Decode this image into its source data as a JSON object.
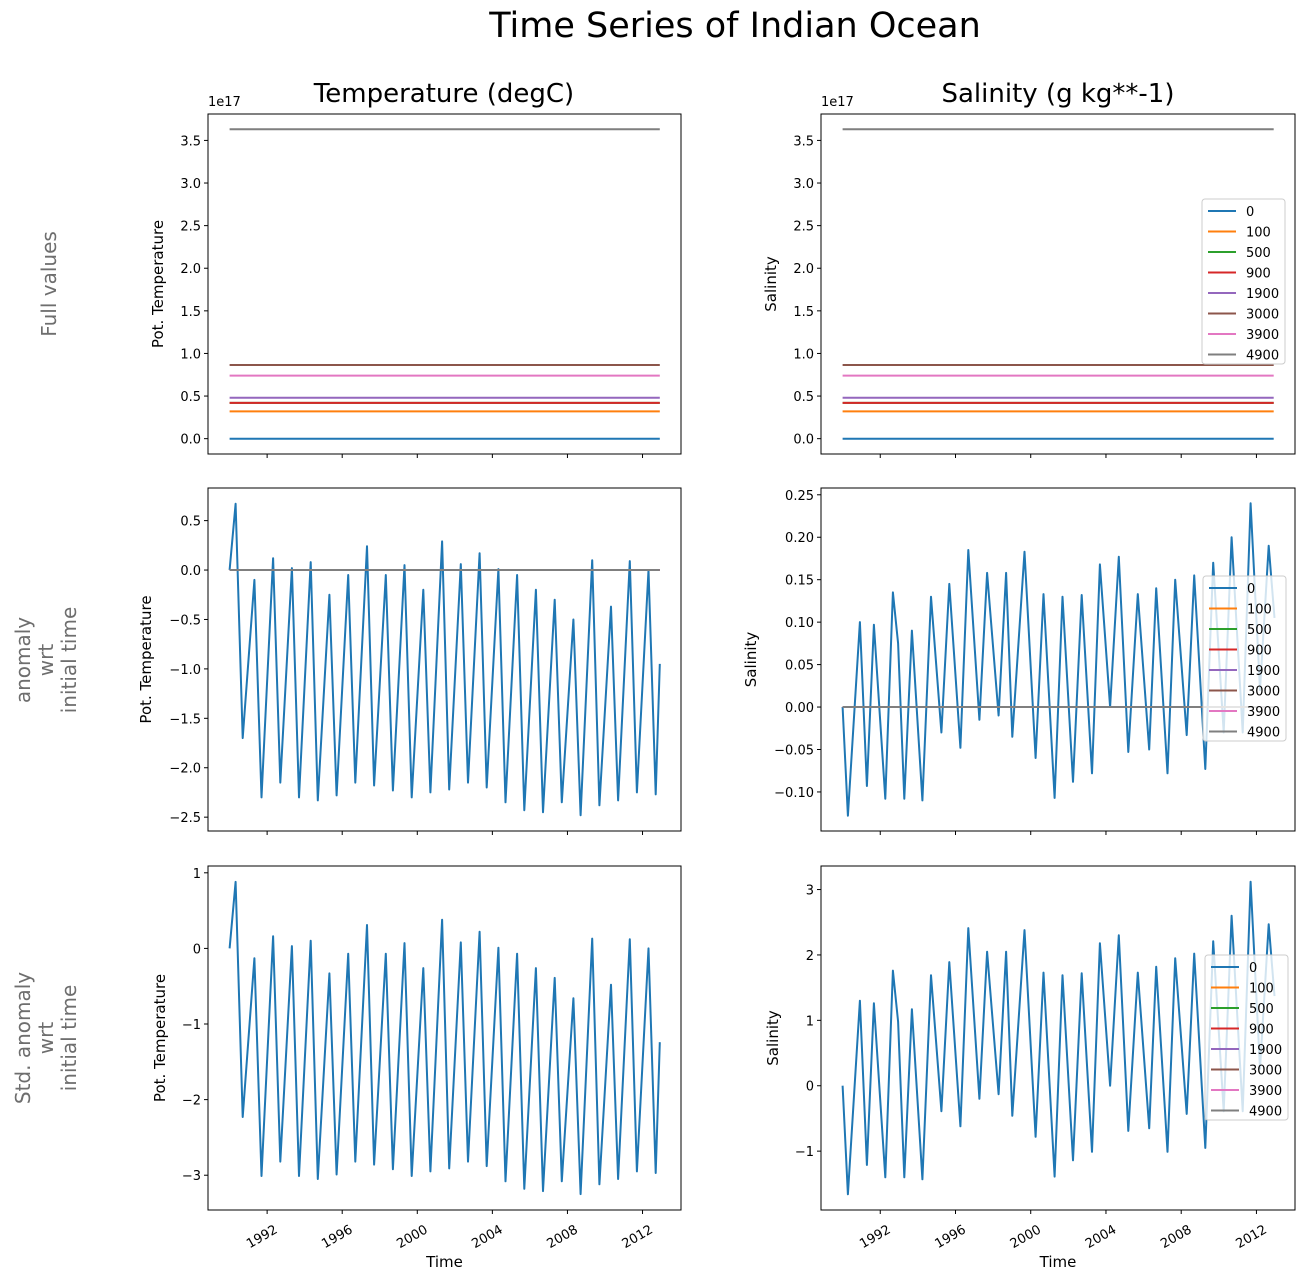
{
  "figure": {
    "title": "Time Series of Indian Ocean",
    "column_titles": [
      "Temperature (degC)",
      "Salinity (g kg**-1)"
    ],
    "row_labels": [
      [
        "Full values"
      ],
      [
        "anomaly",
        "wrt",
        "initial time"
      ],
      [
        "Std. anomaly",
        "wrt",
        "initial time"
      ]
    ],
    "xlabel": "Time",
    "xticks": [
      1992,
      1996,
      2000,
      2004,
      2008,
      2012
    ],
    "xlim": [
      1988.85,
      2014.05
    ],
    "legend_labels": [
      "0",
      "100",
      "500",
      "900",
      "1900",
      "3000",
      "3900",
      "4900"
    ],
    "colors": [
      "#1f77b4",
      "#ff7f0e",
      "#2ca02c",
      "#d62728",
      "#9467bd",
      "#8c564b",
      "#e377c2",
      "#7f7f7f"
    ]
  },
  "chart_data": [
    {
      "type": "line",
      "panel": "temperature-full",
      "ylabel": "Pot. Temperature",
      "offset_text": "1e17",
      "ylim": [
        -0.18,
        3.81
      ],
      "yticks": [
        0.0,
        0.5,
        1.0,
        1.5,
        2.0,
        2.5,
        3.0,
        3.5
      ],
      "ytick_labels": [
        "0.0",
        "0.5",
        "1.0",
        "1.5",
        "2.0",
        "2.5",
        "3.0",
        "3.5"
      ],
      "legend": false,
      "series": [
        {
          "name": "0",
          "x": [
            1990.0,
            2012.92
          ],
          "y": [
            0.0,
            0.0
          ]
        },
        {
          "name": "100",
          "x": [
            1990.0,
            2012.92
          ],
          "y": [
            0.32,
            0.32
          ]
        },
        {
          "name": "500",
          "x": [
            1990.0,
            2012.92
          ],
          "y": [
            0.42,
            0.42
          ]
        },
        {
          "name": "900",
          "x": [
            1990.0,
            2012.92
          ],
          "y": [
            0.42,
            0.42
          ]
        },
        {
          "name": "1900",
          "x": [
            1990.0,
            2012.92
          ],
          "y": [
            0.48,
            0.48
          ]
        },
        {
          "name": "3000",
          "x": [
            1990.0,
            2012.92
          ],
          "y": [
            0.865,
            0.865
          ]
        },
        {
          "name": "3900",
          "x": [
            1990.0,
            2012.92
          ],
          "y": [
            0.74,
            0.74
          ]
        },
        {
          "name": "4900",
          "x": [
            1990.0,
            2012.92
          ],
          "y": [
            3.63,
            3.63
          ]
        }
      ]
    },
    {
      "type": "line",
      "panel": "salinity-full",
      "ylabel": "Salinity",
      "offset_text": "1e17",
      "ylim": [
        -0.18,
        3.81
      ],
      "yticks": [
        0.0,
        0.5,
        1.0,
        1.5,
        2.0,
        2.5,
        3.0,
        3.5
      ],
      "ytick_labels": [
        "0.0",
        "0.5",
        "1.0",
        "1.5",
        "2.0",
        "2.5",
        "3.0",
        "3.5"
      ],
      "legend": true,
      "series": [
        {
          "name": "0",
          "x": [
            1990.0,
            2012.92
          ],
          "y": [
            0.0,
            0.0
          ]
        },
        {
          "name": "100",
          "x": [
            1990.0,
            2012.92
          ],
          "y": [
            0.32,
            0.32
          ]
        },
        {
          "name": "500",
          "x": [
            1990.0,
            2012.92
          ],
          "y": [
            0.42,
            0.42
          ]
        },
        {
          "name": "900",
          "x": [
            1990.0,
            2012.92
          ],
          "y": [
            0.42,
            0.42
          ]
        },
        {
          "name": "1900",
          "x": [
            1990.0,
            2012.92
          ],
          "y": [
            0.48,
            0.48
          ]
        },
        {
          "name": "3000",
          "x": [
            1990.0,
            2012.92
          ],
          "y": [
            0.865,
            0.865
          ]
        },
        {
          "name": "3900",
          "x": [
            1990.0,
            2012.92
          ],
          "y": [
            0.74,
            0.74
          ]
        },
        {
          "name": "4900",
          "x": [
            1990.0,
            2012.92
          ],
          "y": [
            3.63,
            3.63
          ]
        }
      ]
    },
    {
      "type": "line",
      "panel": "temperature-anomaly",
      "ylabel": "Pot. Temperature",
      "offset_text": "",
      "ylim": [
        -2.64,
        0.83
      ],
      "yticks": [
        -2.5,
        -2.0,
        -1.5,
        -1.0,
        -0.5,
        0.0,
        0.5
      ],
      "ytick_labels": [
        "−2.5",
        "−2.0",
        "−1.5",
        "−1.0",
        "−0.5",
        "0.0",
        "0.5"
      ],
      "legend": false,
      "series": [
        {
          "name": "0",
          "x": [
            1990.0,
            1990.32,
            1990.7,
            1991.32,
            1991.7,
            1992.32,
            1992.7,
            1993.32,
            1993.7,
            1994.32,
            1994.7,
            1995.32,
            1995.7,
            1996.32,
            1996.7,
            1997.32,
            1997.7,
            1998.32,
            1998.7,
            1999.32,
            1999.7,
            2000.32,
            2000.7,
            2001.32,
            2001.7,
            2002.32,
            2002.7,
            2003.32,
            2003.7,
            2004.32,
            2004.7,
            2005.32,
            2005.7,
            2006.32,
            2006.7,
            2007.32,
            2007.7,
            2008.32,
            2008.7,
            2009.32,
            2009.7,
            2010.32,
            2010.7,
            2011.32,
            2011.7,
            2012.32,
            2012.7,
            2012.92
          ],
          "y": [
            0,
            0.67,
            -1.7,
            -0.1,
            -2.3,
            0.12,
            -2.15,
            0.02,
            -2.3,
            0.08,
            -2.33,
            -0.25,
            -2.28,
            -0.05,
            -2.15,
            0.24,
            -2.18,
            -0.05,
            -2.23,
            0.05,
            -2.3,
            -0.2,
            -2.25,
            0.29,
            -2.22,
            0.06,
            -2.15,
            0.17,
            -2.2,
            0.01,
            -2.35,
            -0.05,
            -2.43,
            -0.2,
            -2.45,
            -0.3,
            -2.35,
            -0.5,
            -2.48,
            0.1,
            -2.38,
            -0.37,
            -2.33,
            0.09,
            -2.25,
            0.0,
            -2.27,
            -0.95
          ]
        },
        {
          "name": "100",
          "x": [
            1990.0,
            2012.92
          ],
          "y": [
            0,
            0
          ]
        },
        {
          "name": "500",
          "x": [
            1990.0,
            2012.92
          ],
          "y": [
            0,
            0
          ]
        },
        {
          "name": "900",
          "x": [
            1990.0,
            2012.92
          ],
          "y": [
            0,
            0
          ]
        },
        {
          "name": "1900",
          "x": [
            1990.0,
            2012.92
          ],
          "y": [
            0,
            0
          ]
        },
        {
          "name": "3000",
          "x": [
            1990.0,
            2012.92
          ],
          "y": [
            0,
            0
          ]
        },
        {
          "name": "3900",
          "x": [
            1990.0,
            2012.92
          ],
          "y": [
            0,
            0
          ]
        },
        {
          "name": "4900",
          "x": [
            1990.0,
            2012.92
          ],
          "y": [
            0,
            0
          ]
        }
      ]
    },
    {
      "type": "line",
      "panel": "salinity-anomaly",
      "ylabel": "Salinity",
      "offset_text": "",
      "ylim": [
        -0.146,
        0.258
      ],
      "yticks": [
        -0.1,
        -0.05,
        0.0,
        0.05,
        0.1,
        0.15,
        0.2,
        0.25
      ],
      "ytick_labels": [
        "−0.10",
        "−0.05",
        "0.00",
        "0.05",
        "0.10",
        "0.15",
        "0.20",
        "0.25"
      ],
      "legend": true,
      "series": [
        {
          "name": "0",
          "x": [
            1990.0,
            1990.28,
            1990.92,
            1991.29,
            1991.66,
            1992.27,
            1992.67,
            1992.95,
            1993.28,
            1993.68,
            1994.24,
            1994.7,
            1995.25,
            1995.67,
            1996.26,
            1996.68,
            1997.27,
            1997.68,
            1998.29,
            1998.69,
            1999.02,
            1999.67,
            2000.26,
            2000.68,
            2001.27,
            2001.69,
            2002.25,
            2002.71,
            2003.26,
            2003.68,
            2004.22,
            2004.68,
            2005.19,
            2005.69,
            2006.3,
            2006.67,
            2007.27,
            2007.68,
            2008.29,
            2008.69,
            2009.28,
            2009.7,
            2010.26,
            2010.68,
            2011.27,
            2011.69,
            2012.19,
            2012.65,
            2012.96
          ],
          "y": [
            0,
            -0.128,
            0.1,
            -0.093,
            0.097,
            -0.108,
            0.135,
            0.075,
            -0.108,
            0.09,
            -0.11,
            0.13,
            -0.03,
            0.145,
            -0.048,
            0.185,
            -0.015,
            0.158,
            -0.01,
            0.158,
            -0.035,
            0.183,
            -0.06,
            0.133,
            -0.107,
            0.13,
            -0.088,
            0.132,
            -0.078,
            0.168,
            0.0,
            0.177,
            -0.053,
            0.133,
            -0.05,
            0.14,
            -0.078,
            0.15,
            -0.033,
            0.155,
            -0.073,
            0.17,
            -0.03,
            0.2,
            -0.03,
            0.24,
            0.02,
            0.19,
            0.105
          ]
        },
        {
          "name": "100",
          "x": [
            1990.0,
            2012.92
          ],
          "y": [
            0,
            0
          ]
        },
        {
          "name": "500",
          "x": [
            1990.0,
            2012.92
          ],
          "y": [
            0,
            0
          ]
        },
        {
          "name": "900",
          "x": [
            1990.0,
            2012.92
          ],
          "y": [
            0,
            0
          ]
        },
        {
          "name": "1900",
          "x": [
            1990.0,
            2012.92
          ],
          "y": [
            0,
            0
          ]
        },
        {
          "name": "3000",
          "x": [
            1990.0,
            2012.92
          ],
          "y": [
            0,
            0
          ]
        },
        {
          "name": "3900",
          "x": [
            1990.0,
            2012.92
          ],
          "y": [
            0,
            0
          ]
        },
        {
          "name": "4900",
          "x": [
            1990.0,
            2012.92
          ],
          "y": [
            0,
            0
          ]
        }
      ]
    },
    {
      "type": "line",
      "panel": "temperature-std-anomaly",
      "ylabel": "Pot. Temperature",
      "offset_text": "",
      "ylim": [
        -3.46,
        1.09
      ],
      "yticks": [
        -3,
        -2,
        -1,
        0,
        1
      ],
      "ytick_labels": [
        "−3",
        "−2",
        "−1",
        "0",
        "1"
      ],
      "legend": false,
      "series": [
        {
          "name": "0",
          "x": [
            1990.0,
            1990.32,
            1990.7,
            1991.32,
            1991.7,
            1992.32,
            1992.7,
            1993.32,
            1993.7,
            1994.32,
            1994.7,
            1995.32,
            1995.7,
            1996.32,
            1996.7,
            1997.32,
            1997.7,
            1998.32,
            1998.7,
            1999.32,
            1999.7,
            2000.32,
            2000.7,
            2001.32,
            2001.7,
            2002.32,
            2002.7,
            2003.32,
            2003.7,
            2004.32,
            2004.7,
            2005.32,
            2005.7,
            2006.32,
            2006.7,
            2007.32,
            2007.7,
            2008.32,
            2008.7,
            2009.32,
            2009.7,
            2010.32,
            2010.7,
            2011.32,
            2011.7,
            2012.32,
            2012.7,
            2012.92
          ],
          "y": [
            0,
            0.88,
            -2.23,
            -0.13,
            -3.01,
            0.16,
            -2.82,
            0.03,
            -3.01,
            0.1,
            -3.05,
            -0.33,
            -2.99,
            -0.07,
            -2.82,
            0.31,
            -2.86,
            -0.07,
            -2.92,
            0.07,
            -3.01,
            -0.26,
            -2.95,
            0.38,
            -2.91,
            0.08,
            -2.82,
            0.22,
            -2.88,
            0.01,
            -3.08,
            -0.07,
            -3.18,
            -0.26,
            -3.21,
            -0.39,
            -3.08,
            -0.66,
            -3.25,
            0.13,
            -3.12,
            -0.48,
            -3.05,
            0.12,
            -2.95,
            0.0,
            -2.97,
            -1.24
          ]
        }
      ]
    },
    {
      "type": "line",
      "panel": "salinity-std-anomaly",
      "ylabel": "Salinity",
      "offset_text": "",
      "ylim": [
        -1.9,
        3.36
      ],
      "yticks": [
        -1,
        0,
        1,
        2,
        3
      ],
      "ytick_labels": [
        "−1",
        "0",
        "1",
        "2",
        "3"
      ],
      "legend": true,
      "series": [
        {
          "name": "0",
          "x": [
            1990.0,
            1990.28,
            1990.92,
            1991.29,
            1991.66,
            1992.27,
            1992.67,
            1992.95,
            1993.28,
            1993.68,
            1994.24,
            1994.7,
            1995.25,
            1995.67,
            1996.26,
            1996.68,
            1997.27,
            1997.68,
            1998.29,
            1998.69,
            1999.02,
            1999.67,
            2000.26,
            2000.68,
            2001.27,
            2001.69,
            2002.25,
            2002.71,
            2003.26,
            2003.68,
            2004.22,
            2004.68,
            2005.19,
            2005.69,
            2006.3,
            2006.67,
            2007.27,
            2007.68,
            2008.29,
            2008.69,
            2009.28,
            2009.7,
            2010.26,
            2010.68,
            2011.27,
            2011.69,
            2012.19,
            2012.65,
            2012.96
          ],
          "y": [
            0,
            -1.66,
            1.3,
            -1.21,
            1.26,
            -1.4,
            1.76,
            0.98,
            -1.4,
            1.17,
            -1.43,
            1.69,
            -0.39,
            1.89,
            -0.62,
            2.41,
            -0.2,
            2.05,
            -0.13,
            2.05,
            -0.46,
            2.38,
            -0.78,
            1.73,
            -1.39,
            1.69,
            -1.14,
            1.72,
            -1.01,
            2.18,
            0.0,
            2.3,
            -0.69,
            1.73,
            -0.65,
            1.82,
            -1.01,
            1.95,
            -0.43,
            2.02,
            -0.95,
            2.21,
            -0.39,
            2.6,
            -0.39,
            3.12,
            0.26,
            2.47,
            1.37
          ]
        }
      ]
    }
  ]
}
